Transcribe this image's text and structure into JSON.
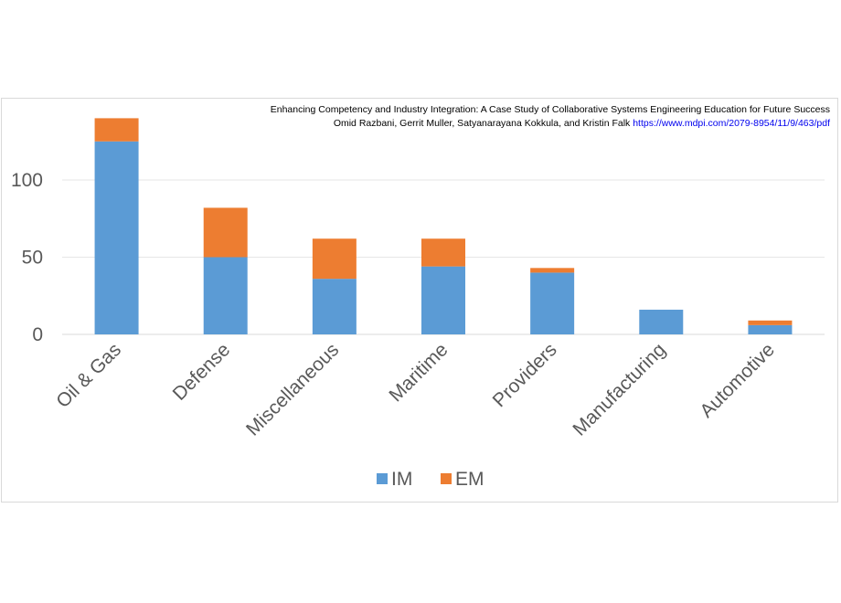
{
  "caption": {
    "line1": "Enhancing Competency and Industry Integration: A Case Study of Collaborative Systems Engineering Education for Future Success",
    "authors": "Omid Razbani, Gerrit Muller, Satyanarayana Kokkula, and Kristin Falk",
    "url": "https://www.mdpi.com/2079-8954/11/9/463/pdf"
  },
  "chart_data": {
    "type": "bar",
    "stacked": true,
    "categories": [
      "Oil & Gas",
      "Defense",
      "Miscellaneous",
      "Maritime",
      "Providers",
      "Manufacturing",
      "Automotive"
    ],
    "series": [
      {
        "name": "IM",
        "color": "#5b9bd5",
        "values": [
          125,
          50,
          36,
          44,
          40,
          16,
          6
        ]
      },
      {
        "name": "EM",
        "color": "#ed7d31",
        "values": [
          15,
          32,
          26,
          18,
          3,
          0,
          3
        ]
      }
    ],
    "ylim": [
      0,
      140
    ],
    "yticks": [
      0,
      50,
      100
    ],
    "grid": true,
    "legend_position": "bottom"
  }
}
